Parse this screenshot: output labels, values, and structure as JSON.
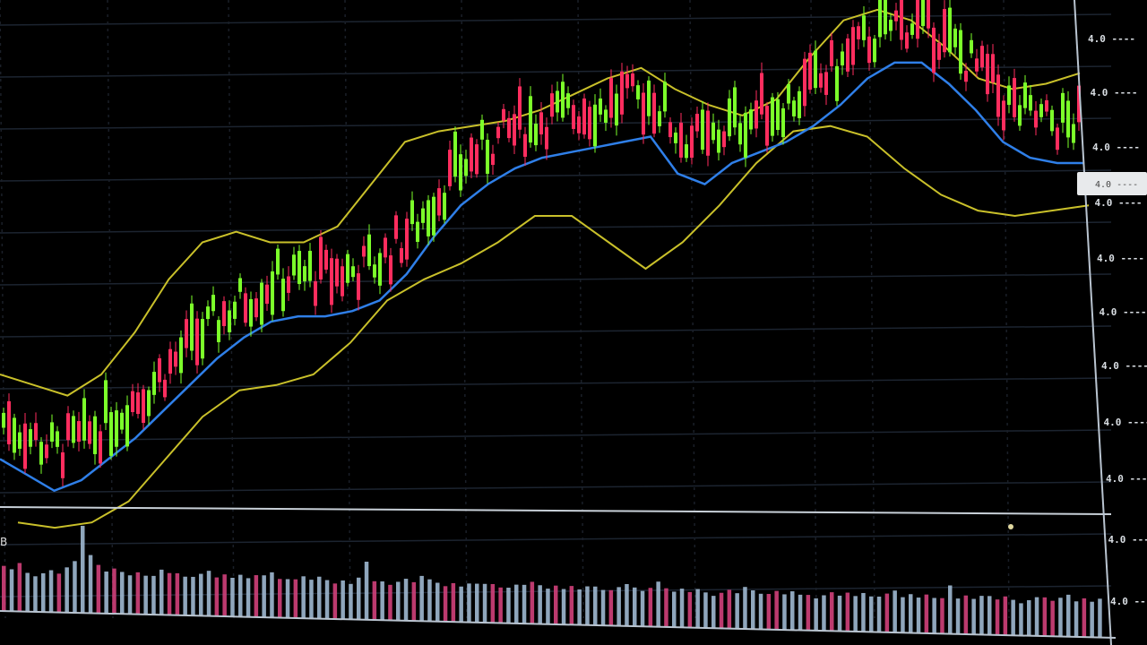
{
  "chart_data": {
    "type": "candlestick",
    "title": "",
    "xlabel": "",
    "ylabel": "",
    "grid": true,
    "legend": "none",
    "indicators": [
      "Bollinger Bands (upper/lower, yellow)",
      "Moving Average (middle, blue)",
      "Volume histogram"
    ],
    "price_axis_labels": [
      "-",
      "-",
      "-",
      "-",
      "-",
      "-",
      "-",
      "-",
      "-",
      "-",
      "-"
    ],
    "current_price_tag": "",
    "note": "Axis tick labels are blurred and illegible in the source image; series values are approximate pixel-relative price levels (higher = higher price, 0-100 scale).",
    "colors": {
      "up": "#7cff2a",
      "down": "#ff2d5e",
      "band": "#c9c02a",
      "ma": "#2f7fe8",
      "grid": "#1c2430",
      "volume_up": "#9fb8d0",
      "volume_down": "#d0407a",
      "axis_line": "#b9c4d0"
    },
    "ma_series": [
      14,
      11,
      8,
      10,
      14,
      18,
      23,
      28,
      33,
      37,
      40,
      41,
      41,
      42,
      44,
      49,
      56,
      62,
      66,
      69,
      71,
      72,
      73,
      74,
      75,
      68,
      66,
      70,
      72,
      74,
      77,
      81,
      86,
      89,
      89,
      85,
      80,
      74,
      71,
      70,
      70
    ],
    "upper_band": [
      30,
      28,
      26,
      30,
      38,
      48,
      55,
      57,
      55,
      55,
      58,
      66,
      74,
      76,
      77,
      78,
      80,
      83,
      86,
      88,
      84,
      81,
      79,
      82,
      90,
      97,
      99,
      97,
      92,
      86,
      84,
      85,
      87
    ],
    "lower_band": [
      2,
      1,
      2,
      6,
      14,
      22,
      27,
      28,
      30,
      36,
      44,
      48,
      51,
      55,
      60,
      60,
      55,
      50,
      55,
      62,
      70,
      76,
      77,
      75,
      69,
      64,
      61,
      60,
      61,
      62
    ],
    "volume": [
      14,
      13,
      15,
      12,
      11,
      12,
      13,
      12,
      14,
      16,
      27,
      18,
      15,
      13,
      14,
      13,
      12,
      13,
      12,
      12,
      14,
      13,
      13,
      12,
      12,
      13,
      14,
      12,
      13,
      12,
      13,
      12,
      13,
      13,
      14,
      12,
      12,
      12,
      13,
      12,
      13,
      12,
      11,
      12,
      11,
      13,
      18,
      12,
      12,
      11,
      12,
      13,
      12,
      14,
      13,
      12,
      11,
      12,
      11,
      12,
      12,
      12,
      12,
      11,
      11,
      12,
      12,
      13,
      12,
      11,
      12,
      11,
      12,
      11,
      12,
      12,
      11,
      11,
      12,
      13,
      12,
      11,
      12,
      14,
      12,
      11,
      12,
      11,
      12,
      11,
      10,
      11,
      12,
      11,
      13,
      12,
      11,
      11,
      12,
      11,
      12,
      11,
      11,
      10,
      11,
      12,
      11,
      12,
      11,
      12,
      11,
      11,
      12,
      13,
      11,
      12,
      11,
      12,
      11,
      11,
      15,
      11,
      12,
      11,
      12,
      12,
      11,
      12,
      11,
      10,
      11,
      12,
      12,
      11,
      12,
      13,
      11,
      12,
      11,
      12
    ]
  },
  "price_axis": {
    "labels": [
      "4.0 ----",
      "4.0 ----",
      "4.0 ----",
      "4.0 ----",
      "4.0 ----",
      "4.0 ----",
      "4.0 ----",
      "4.0 ----",
      "4.0 ----",
      "4.0 ----",
      "4.0 ----"
    ],
    "tag": "4.0 ----"
  }
}
